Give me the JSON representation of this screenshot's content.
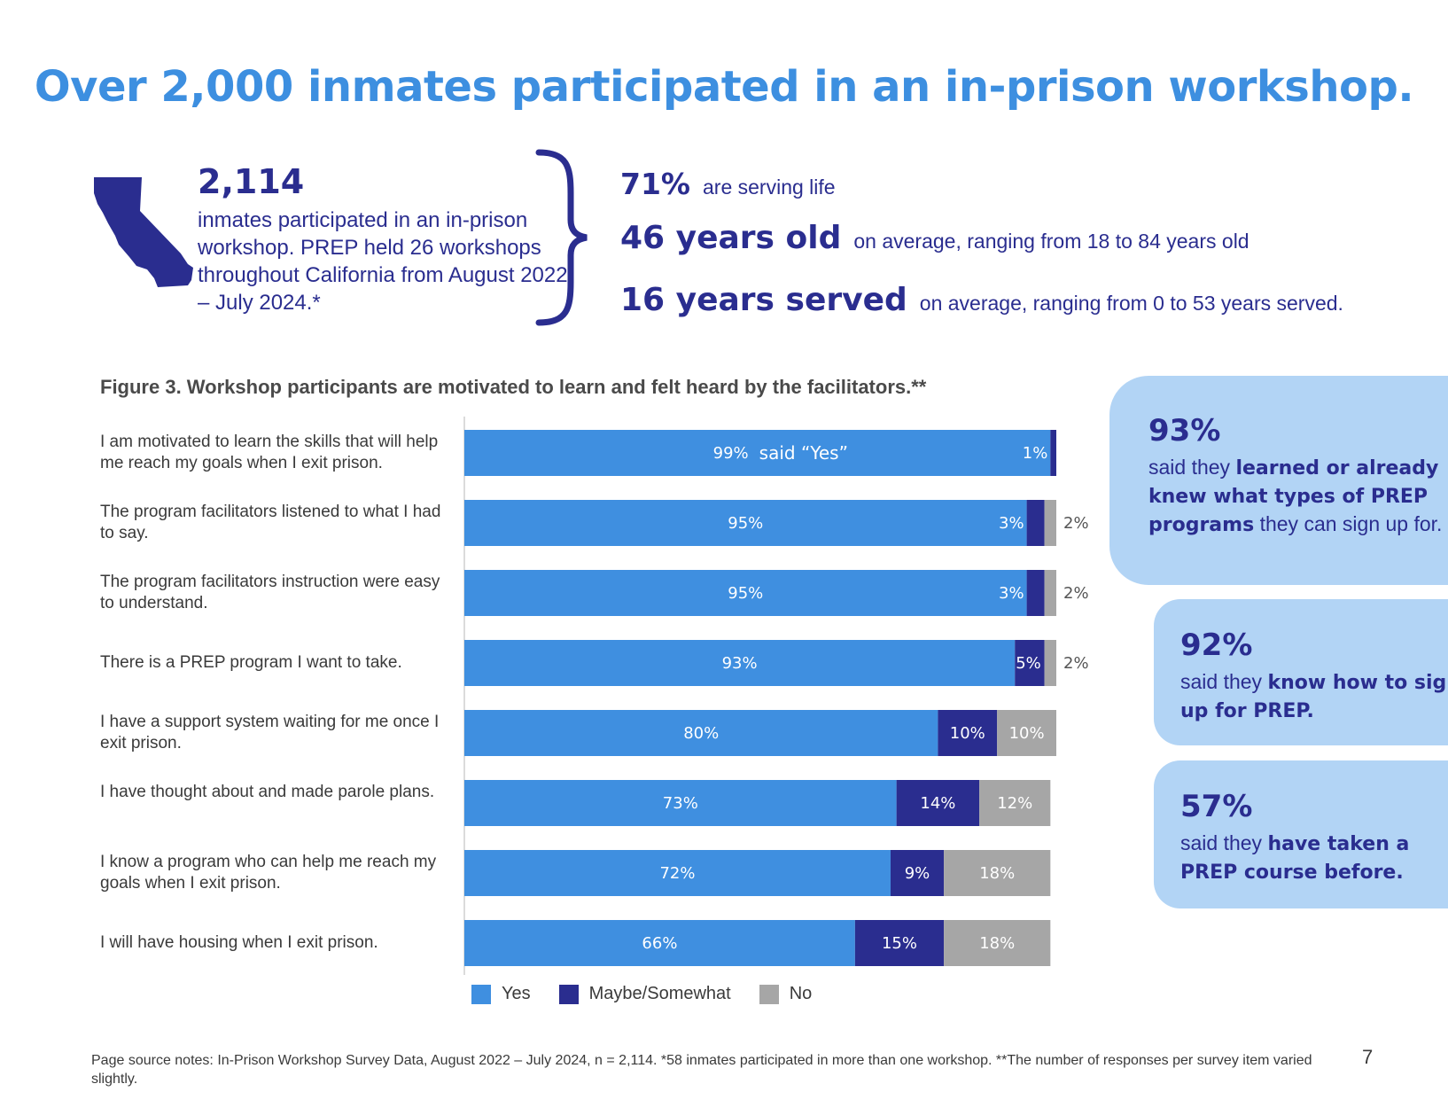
{
  "title": "Over 2,000 inmates participated in an in-prison workshop.",
  "summary": {
    "count": "2,114",
    "description": "inmates participated in an in-prison workshop. PREP held 26 workshops throughout California from August 2022 – July 2024.*"
  },
  "stats": [
    {
      "big": "71%",
      "small": "are serving life"
    },
    {
      "big": "46 years old",
      "small": "on average, ranging from 18 to 84 years old"
    },
    {
      "big": "16 years served",
      "small": "on average, ranging from 0 to 53 years served."
    }
  ],
  "figure_title": "Figure 3. Workshop participants are motivated to learn and felt heard by the facilitators.**",
  "chart_data": {
    "type": "bar",
    "orientation": "horizontal",
    "stacked": true,
    "categories": [
      "I am motivated to learn the skills that will help me reach my goals when I exit prison.",
      "The program facilitators listened to what I had to say.",
      "The program facilitators instruction were easy to understand.",
      "There is a PREP program I want to take.",
      "I have a support system waiting for me once I exit prison.",
      "I have thought about and made parole plans.",
      "I know a program who can help me reach my goals when I exit prison.",
      "I will have housing when I exit prison."
    ],
    "series": [
      {
        "name": "Yes",
        "color": "#3f8fe0",
        "values": [
          99,
          95,
          95,
          93,
          80,
          73,
          72,
          66
        ]
      },
      {
        "name": "Maybe/Somewhat",
        "color": "#2a2d8f",
        "values": [
          1,
          3,
          3,
          5,
          10,
          14,
          9,
          15
        ]
      },
      {
        "name": "No",
        "color": "#a6a6a6",
        "values": [
          0,
          2,
          2,
          2,
          10,
          12,
          18,
          18
        ]
      }
    ],
    "annotation": "said “Yes”",
    "xlim": [
      0,
      100
    ],
    "legend_position": "bottom"
  },
  "callouts": [
    {
      "pct": "93%",
      "pre": "said they ",
      "bold": "learned or already knew what types of PREP programs",
      "post": " they can sign up for."
    },
    {
      "pct": "92%",
      "pre": "said they ",
      "bold": "know how to sign up for PREP.",
      "post": ""
    },
    {
      "pct": "57%",
      "pre": "said they ",
      "bold": "have taken a PREP course before.",
      "post": ""
    }
  ],
  "source_note": "Page source notes: In-Prison Workshop Survey Data, August 2022 – July 2024, n = 2,114. *58 inmates participated in more than one workshop. **The number of responses per survey item varied slightly.",
  "page_number": "7"
}
